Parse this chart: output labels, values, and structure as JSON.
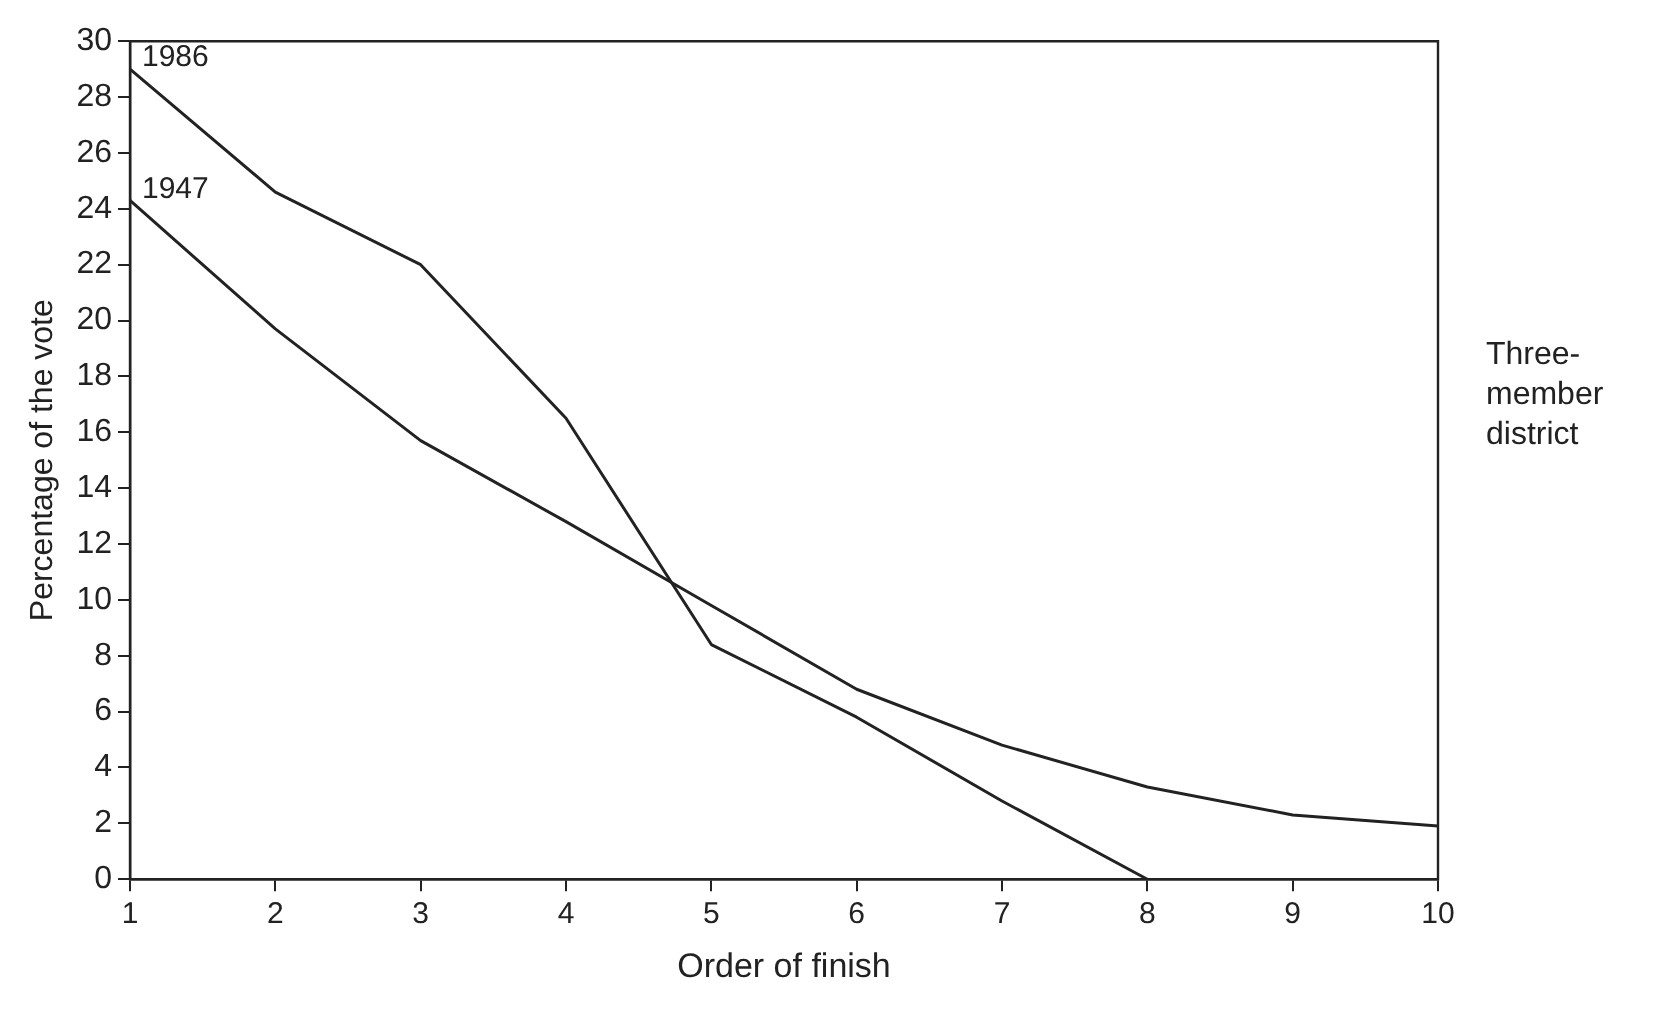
{
  "chart_data": {
    "type": "line",
    "xlabel": "Order of finish",
    "ylabel": "Percentage of the vote",
    "x": [
      1,
      2,
      3,
      4,
      5,
      6,
      7,
      8,
      9,
      10
    ],
    "series": [
      {
        "name": "1986",
        "color": "#222222",
        "x": [
          1,
          2,
          3,
          4,
          5,
          6,
          7,
          8
        ],
        "values": [
          29,
          24.6,
          22,
          16.5,
          8.4,
          5.8,
          2.8,
          0
        ]
      },
      {
        "name": "1947",
        "color": "#222222",
        "values": [
          24.3,
          19.7,
          15.7,
          12.8,
          9.8,
          6.8,
          4.8,
          3.3,
          2.3,
          1.9
        ]
      }
    ],
    "xlim": [
      1,
      10
    ],
    "xticks": [
      1,
      2,
      3,
      4,
      5,
      6,
      7,
      8,
      9,
      10
    ],
    "ylim": [
      0,
      30
    ],
    "yticks": [
      0,
      2,
      4,
      6,
      8,
      10,
      12,
      14,
      16,
      18,
      20,
      22,
      24,
      26,
      28,
      30
    ],
    "grid": false,
    "legend": false,
    "marker": "none",
    "line_style": "solid",
    "annotations": [
      "Three-member district"
    ]
  }
}
